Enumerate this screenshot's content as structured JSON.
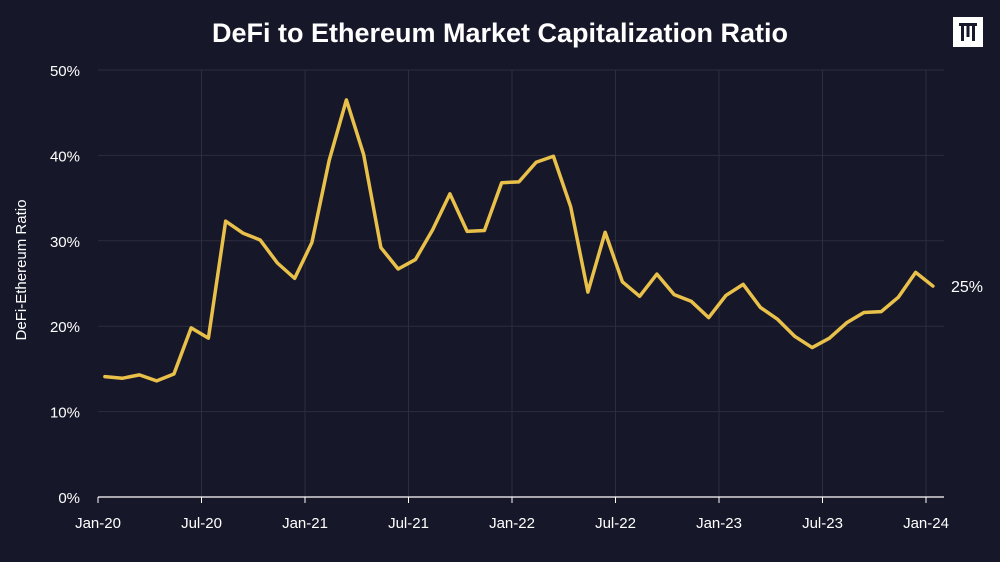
{
  "chart_data": {
    "type": "line",
    "title": "DeFi to Ethereum Market Capitalization Ratio",
    "xlabel": "",
    "ylabel": "DeFi-Ethereum Ratio",
    "ylim": [
      0,
      50
    ],
    "yticks": [
      "0%",
      "10%",
      "20%",
      "30%",
      "40%",
      "50%"
    ],
    "ytick_values": [
      0,
      10,
      20,
      30,
      40,
      50
    ],
    "xticks": [
      "Jan-20",
      "Jul-20",
      "Jan-21",
      "Jul-21",
      "Jan-22",
      "Jul-22",
      "Jan-23",
      "Jul-23",
      "Jan-24"
    ],
    "grid": true,
    "line_color": "#e8c04a",
    "background_color": "#161729",
    "end_label": "25%",
    "x": [
      "2020-01",
      "2020-02",
      "2020-03",
      "2020-04",
      "2020-05",
      "2020-06",
      "2020-07",
      "2020-08",
      "2020-09",
      "2020-10",
      "2020-11",
      "2020-12",
      "2021-01",
      "2021-02",
      "2021-03",
      "2021-04",
      "2021-05",
      "2021-06",
      "2021-07",
      "2021-08",
      "2021-09",
      "2021-10",
      "2021-11",
      "2021-12",
      "2022-01",
      "2022-02",
      "2022-03",
      "2022-04",
      "2022-05",
      "2022-06",
      "2022-07",
      "2022-08",
      "2022-09",
      "2022-10",
      "2022-11",
      "2022-12",
      "2023-01",
      "2023-02",
      "2023-03",
      "2023-04",
      "2023-05",
      "2023-06",
      "2023-07",
      "2023-08",
      "2023-09",
      "2023-10",
      "2023-11",
      "2023-12",
      "2024-01"
    ],
    "values": [
      14.1,
      13.9,
      14.3,
      13.6,
      14.4,
      19.8,
      18.6,
      32.3,
      30.9,
      30.1,
      27.4,
      25.6,
      29.8,
      39.4,
      46.5,
      40.1,
      29.2,
      26.7,
      27.8,
      31.3,
      35.5,
      31.1,
      31.2,
      36.8,
      36.9,
      39.2,
      39.9,
      34.0,
      24.0,
      31.0,
      25.2,
      23.5,
      26.1,
      23.7,
      22.9,
      21.0,
      23.6,
      24.9,
      22.2,
      20.8,
      18.8,
      17.5,
      18.6,
      20.4,
      21.6,
      21.7,
      23.4,
      26.3,
      24.7
    ]
  },
  "logo": "logo-mark"
}
